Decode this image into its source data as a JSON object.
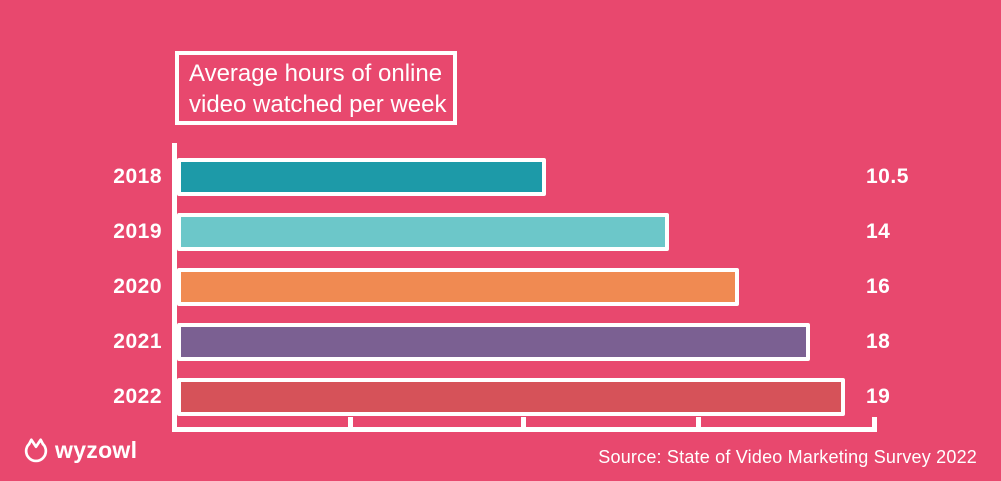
{
  "chart_data": {
    "type": "bar",
    "orientation": "horizontal",
    "title": "Average hours of online video watched per week",
    "title_lines": [
      "Average hours of online",
      "video watched per week"
    ],
    "categories": [
      "2018",
      "2019",
      "2020",
      "2021",
      "2022"
    ],
    "values": [
      10.5,
      14,
      16,
      18,
      19
    ],
    "value_labels": [
      "10.5",
      "14",
      "16",
      "18",
      "19"
    ],
    "bar_colors": [
      "#1d9aa8",
      "#6cc7c9",
      "#f08a52",
      "#7b6092",
      "#d65259"
    ],
    "xlim": [
      0,
      20
    ],
    "x_tick_values": [
      0,
      5,
      10,
      15,
      20
    ],
    "x_tick_labels_visible": false,
    "xlabel": "",
    "ylabel": "",
    "grid": false,
    "legend_position": "none"
  },
  "branding": {
    "logo_text": "wyzowl",
    "logo_icon": "wyzowl-mark"
  },
  "footer": {
    "source_text": "Source: State of Video Marketing Survey 2022"
  },
  "colors": {
    "background": "#e8486e",
    "text": "#ffffff",
    "axis": "#ffffff",
    "bar_border": "#ffffff"
  }
}
